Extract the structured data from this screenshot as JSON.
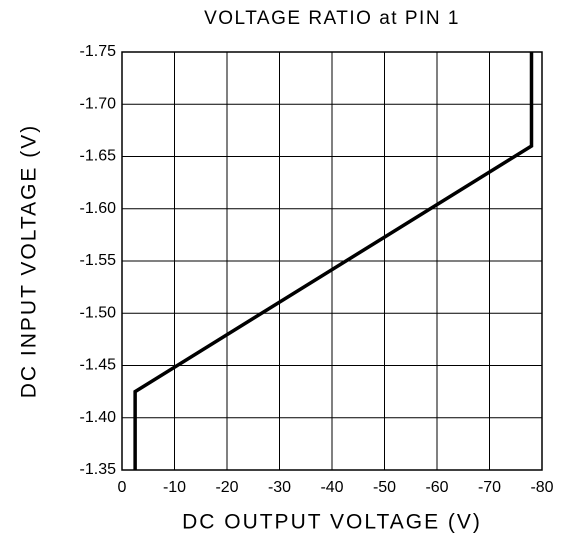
{
  "chart_data": {
    "type": "line",
    "title": "VOLTAGE RATIO at PIN 1",
    "x_label": "DC OUTPUT VOLTAGE (V)",
    "y_label": "DC INPUT VOLTAGE (V)",
    "x": [
      -2.5,
      -2.5,
      -78,
      -78
    ],
    "values": [
      -1.35,
      -1.425,
      -1.66,
      -1.75
    ],
    "color": "#000000",
    "xlim": [
      0,
      -80
    ],
    "xticks": [
      0,
      -10,
      -20,
      -30,
      -40,
      -50,
      -60,
      -70,
      -80
    ],
    "ylim": [
      -1.35,
      -1.75
    ],
    "yticks": [
      -1.35,
      {
        "value": -1.4,
        "label": "-1.40"
      },
      -1.45,
      {
        "value": -1.5,
        "label": "-1.50"
      },
      -1.55,
      {
        "value": -1.6,
        "label": "-1.60"
      },
      -1.65,
      {
        "value": -1.7,
        "label": "-1.70"
      },
      -1.75
    ],
    "grid": true
  }
}
